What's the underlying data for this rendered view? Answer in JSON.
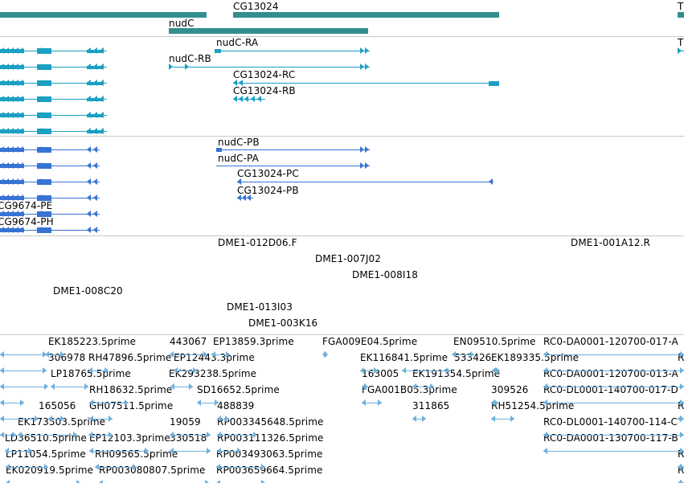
{
  "colors": {
    "gene": "#338f8f",
    "transcript": "#1ba0c3",
    "cds": "#3773d4",
    "est": "#764bab",
    "cdna": "#6fb0dc",
    "border": "#c8c8c8"
  },
  "tracks": {
    "gene_span": {
      "labels": [
        {
          "text": "CG13024"
        },
        {
          "text": "nudC"
        },
        {
          "text": "T"
        }
      ]
    },
    "transcripts": {
      "labels": [
        {
          "text": "nudC-RA"
        },
        {
          "text": "nudC-RB"
        },
        {
          "text": "CG13024-RC"
        },
        {
          "text": "CG13024-RB"
        },
        {
          "text": "T"
        }
      ]
    },
    "cds": {
      "labels": [
        {
          "text": "nudC-PB"
        },
        {
          "text": "nudC-PA"
        },
        {
          "text": "CG13024-PC"
        },
        {
          "text": "CG13024-PB"
        },
        {
          "text": "CG9674-PE"
        },
        {
          "text": "CG9674-PH"
        }
      ]
    },
    "est": {
      "labels": [
        {
          "text": "DME1-012D06.F"
        },
        {
          "text": "DME1-001A12.R"
        },
        {
          "text": "DME1-007J02"
        },
        {
          "text": "DME1-008I18"
        },
        {
          "text": "DME1-008C20"
        },
        {
          "text": "DME1-013I03"
        },
        {
          "text": "DME1-003K16"
        }
      ]
    },
    "cdna": {
      "labels": [
        {
          "text": "EK185223.5prime"
        },
        {
          "text": "443067"
        },
        {
          "text": "EP13859.3prime"
        },
        {
          "text": "FGA009E04.5prime"
        },
        {
          "text": "EN09510.5prime"
        },
        {
          "text": "RC0-DA0001-120700-017-A"
        },
        {
          "text": "306978"
        },
        {
          "text": "RH47896.5prime"
        },
        {
          "text": "EP12443.3prime"
        },
        {
          "text": "EK116841.5prime"
        },
        {
          "text": "533426"
        },
        {
          "text": "EK189335.5prime"
        },
        {
          "text": "R"
        },
        {
          "text": "LP18765.5prime"
        },
        {
          "text": "EK293238.5prime"
        },
        {
          "text": "163005"
        },
        {
          "text": "EK191354.5prime"
        },
        {
          "text": "RC0-DA0001-120700-013-A"
        },
        {
          "text": "RH18632.5prime"
        },
        {
          "text": "SD16652.5prime"
        },
        {
          "text": "FGA001B05.3prime"
        },
        {
          "text": "309526"
        },
        {
          "text": "RC0-DL0001-140700-017-D"
        },
        {
          "text": "165056"
        },
        {
          "text": "GH07511.5prime"
        },
        {
          "text": "488839"
        },
        {
          "text": "311865"
        },
        {
          "text": "RH51254.5prime"
        },
        {
          "text": "R"
        },
        {
          "text": "EK173503.5prime"
        },
        {
          "text": "19059"
        },
        {
          "text": "RP003345648.5prime"
        },
        {
          "text": "RC0-DL0001-140700-114-C"
        },
        {
          "text": "LD36510.5prime"
        },
        {
          "text": "EP12103.3prime"
        },
        {
          "text": "330518"
        },
        {
          "text": "RP003111326.5prime"
        },
        {
          "text": "RC0-DA0001-130700-117-B"
        },
        {
          "text": "LP11054.5prime"
        },
        {
          "text": "RH09565.5prime"
        },
        {
          "text": "RP003493063.5prime"
        },
        {
          "text": "R"
        },
        {
          "text": "EK020919.5prime"
        },
        {
          "text": "RP003080807.5prime"
        },
        {
          "text": "RP003659664.5prime"
        },
        {
          "text": "R"
        }
      ]
    }
  }
}
